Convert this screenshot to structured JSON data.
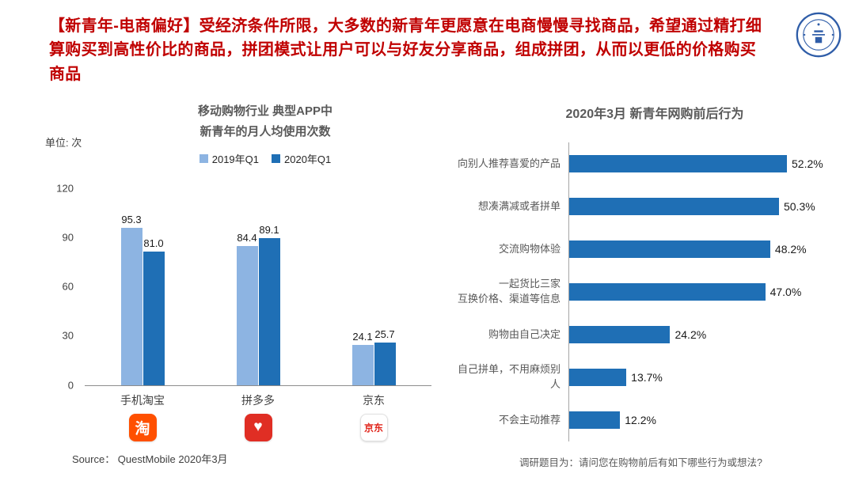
{
  "page": {
    "title": "【新青年-电商偏好】受经济条件所限，大多数的新青年更愿意在电商慢慢寻找商品，希望通过精打细算购买到高性价比的商品，拼团模式让用户可以与好友分享商品，组成拼团，从而以更低的价格购买商品",
    "title_color": "#C00000"
  },
  "logo": {
    "name": "university-seal",
    "color": "#2F5DA8"
  },
  "left_chart": {
    "unit_label": "单位: 次",
    "title_line1": "移动购物行业 典型APP中",
    "title_line2": "新青年的月人均使用次数",
    "source": "Source： QuestMobile 2020年3月",
    "app_icons": [
      {
        "name": "taobao-icon",
        "bg": "#FF5000",
        "fg": "#FFFFFF",
        "glyph": "淘"
      },
      {
        "name": "pinduoduo-icon",
        "bg": "#E02E24",
        "fg": "#FFFFFF",
        "glyph": "♥"
      },
      {
        "name": "jd-icon",
        "bg": "#FFFFFF",
        "fg": "#E1251B",
        "glyph": "京东",
        "border": "#E0E0E0"
      }
    ]
  },
  "right_chart": {
    "footnote": "调研题目为：请问您在购物前后有如下哪些行为或想法?"
  },
  "chart_data": [
    {
      "type": "bar",
      "title": "移动购物行业 典型APP中 新青年的月人均使用次数",
      "ylabel": "单位: 次",
      "ylim": [
        0,
        120
      ],
      "yticks": [
        0,
        30,
        60,
        90,
        120
      ],
      "grid": false,
      "legend_position": "top",
      "categories": [
        "手机淘宝",
        "拼多多",
        "京东"
      ],
      "series": [
        {
          "name": "2019年Q1",
          "color": "#8DB4E2",
          "values": [
            95.3,
            84.4,
            24.1
          ]
        },
        {
          "name": "2020年Q1",
          "color": "#1F6FB5",
          "values": [
            81.0,
            89.1,
            25.7
          ]
        }
      ]
    },
    {
      "type": "bar",
      "orientation": "horizontal",
      "title": "2020年3月 新青年网购前后行为",
      "bar_color": "#1F6FB5",
      "xlim": [
        0,
        60
      ],
      "categories": [
        "向别人推荐喜爱的产品",
        "想凑满减或者拼单",
        "交流购物体验",
        "一起货比三家\n互换价格、渠道等信息",
        "购物由自己决定",
        "自己拼单，不用麻烦别人",
        "不会主动推荐"
      ],
      "values": [
        52.2,
        50.3,
        48.2,
        47.0,
        24.2,
        13.7,
        12.2
      ]
    }
  ]
}
